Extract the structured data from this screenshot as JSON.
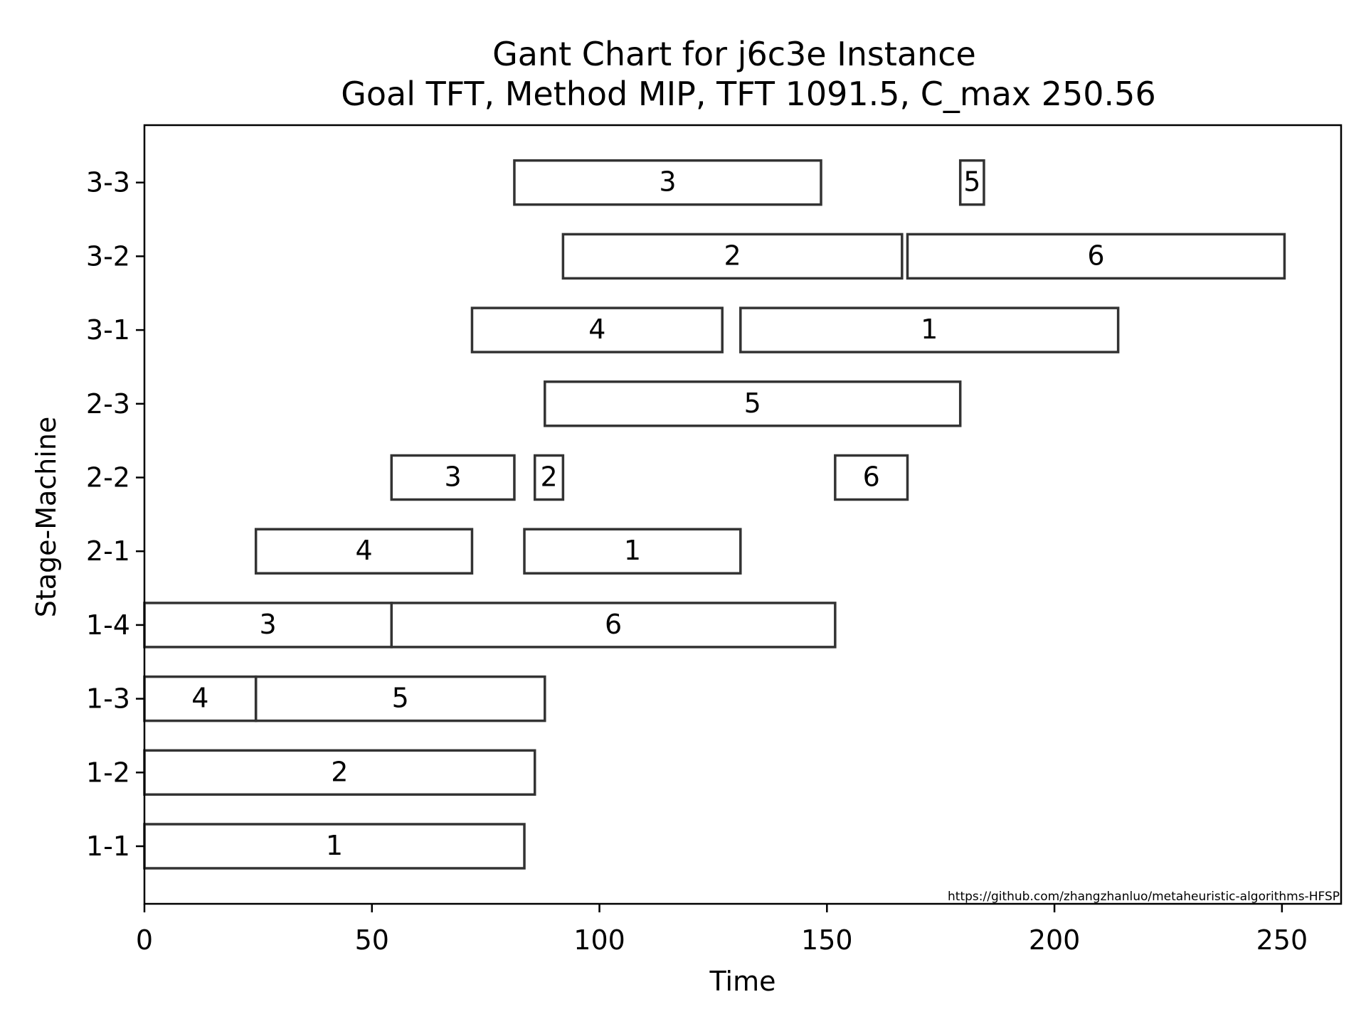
{
  "chart_data": {
    "type": "gantt",
    "title": "Gant Chart for j6c3e Instance",
    "subtitle": "Goal TFT, Method MIP, TFT 1091.5, C_max 250.56",
    "xlabel": "Time",
    "ylabel": "Stage-Machine",
    "xlim": [
      0,
      263
    ],
    "xticks": [
      0,
      50,
      100,
      150,
      200,
      250
    ],
    "machines": [
      "1-1",
      "1-2",
      "1-3",
      "1-4",
      "2-1",
      "2-2",
      "2-3",
      "3-1",
      "3-2",
      "3-3"
    ],
    "tasks": [
      {
        "machine": "1-1",
        "job": "1",
        "start": 0,
        "end": 83.5
      },
      {
        "machine": "1-2",
        "job": "2",
        "start": 0,
        "end": 85.8
      },
      {
        "machine": "1-3",
        "job": "4",
        "start": 0,
        "end": 24.5
      },
      {
        "machine": "1-3",
        "job": "5",
        "start": 24.5,
        "end": 88
      },
      {
        "machine": "1-4",
        "job": "3",
        "start": 0,
        "end": 54.3
      },
      {
        "machine": "1-4",
        "job": "6",
        "start": 54.3,
        "end": 151.8
      },
      {
        "machine": "2-1",
        "job": "4",
        "start": 24.5,
        "end": 72
      },
      {
        "machine": "2-1",
        "job": "1",
        "start": 83.5,
        "end": 131
      },
      {
        "machine": "2-2",
        "job": "3",
        "start": 54.3,
        "end": 81.3
      },
      {
        "machine": "2-2",
        "job": "2",
        "start": 85.8,
        "end": 92
      },
      {
        "machine": "2-2",
        "job": "6",
        "start": 151.8,
        "end": 167.7
      },
      {
        "machine": "2-3",
        "job": "5",
        "start": 88,
        "end": 179.3
      },
      {
        "machine": "3-1",
        "job": "4",
        "start": 72,
        "end": 127
      },
      {
        "machine": "3-1",
        "job": "1",
        "start": 131,
        "end": 214
      },
      {
        "machine": "3-2",
        "job": "2",
        "start": 92,
        "end": 166.5
      },
      {
        "machine": "3-2",
        "job": "6",
        "start": 167.7,
        "end": 250.56
      },
      {
        "machine": "3-3",
        "job": "3",
        "start": 81.3,
        "end": 148.7
      },
      {
        "machine": "3-3",
        "job": "5",
        "start": 179.3,
        "end": 184.5
      }
    ],
    "annotation": "https://github.com/zhangzhanluo/metaheuristic-algorithms-HFSP",
    "grid": false,
    "legend": "none"
  }
}
